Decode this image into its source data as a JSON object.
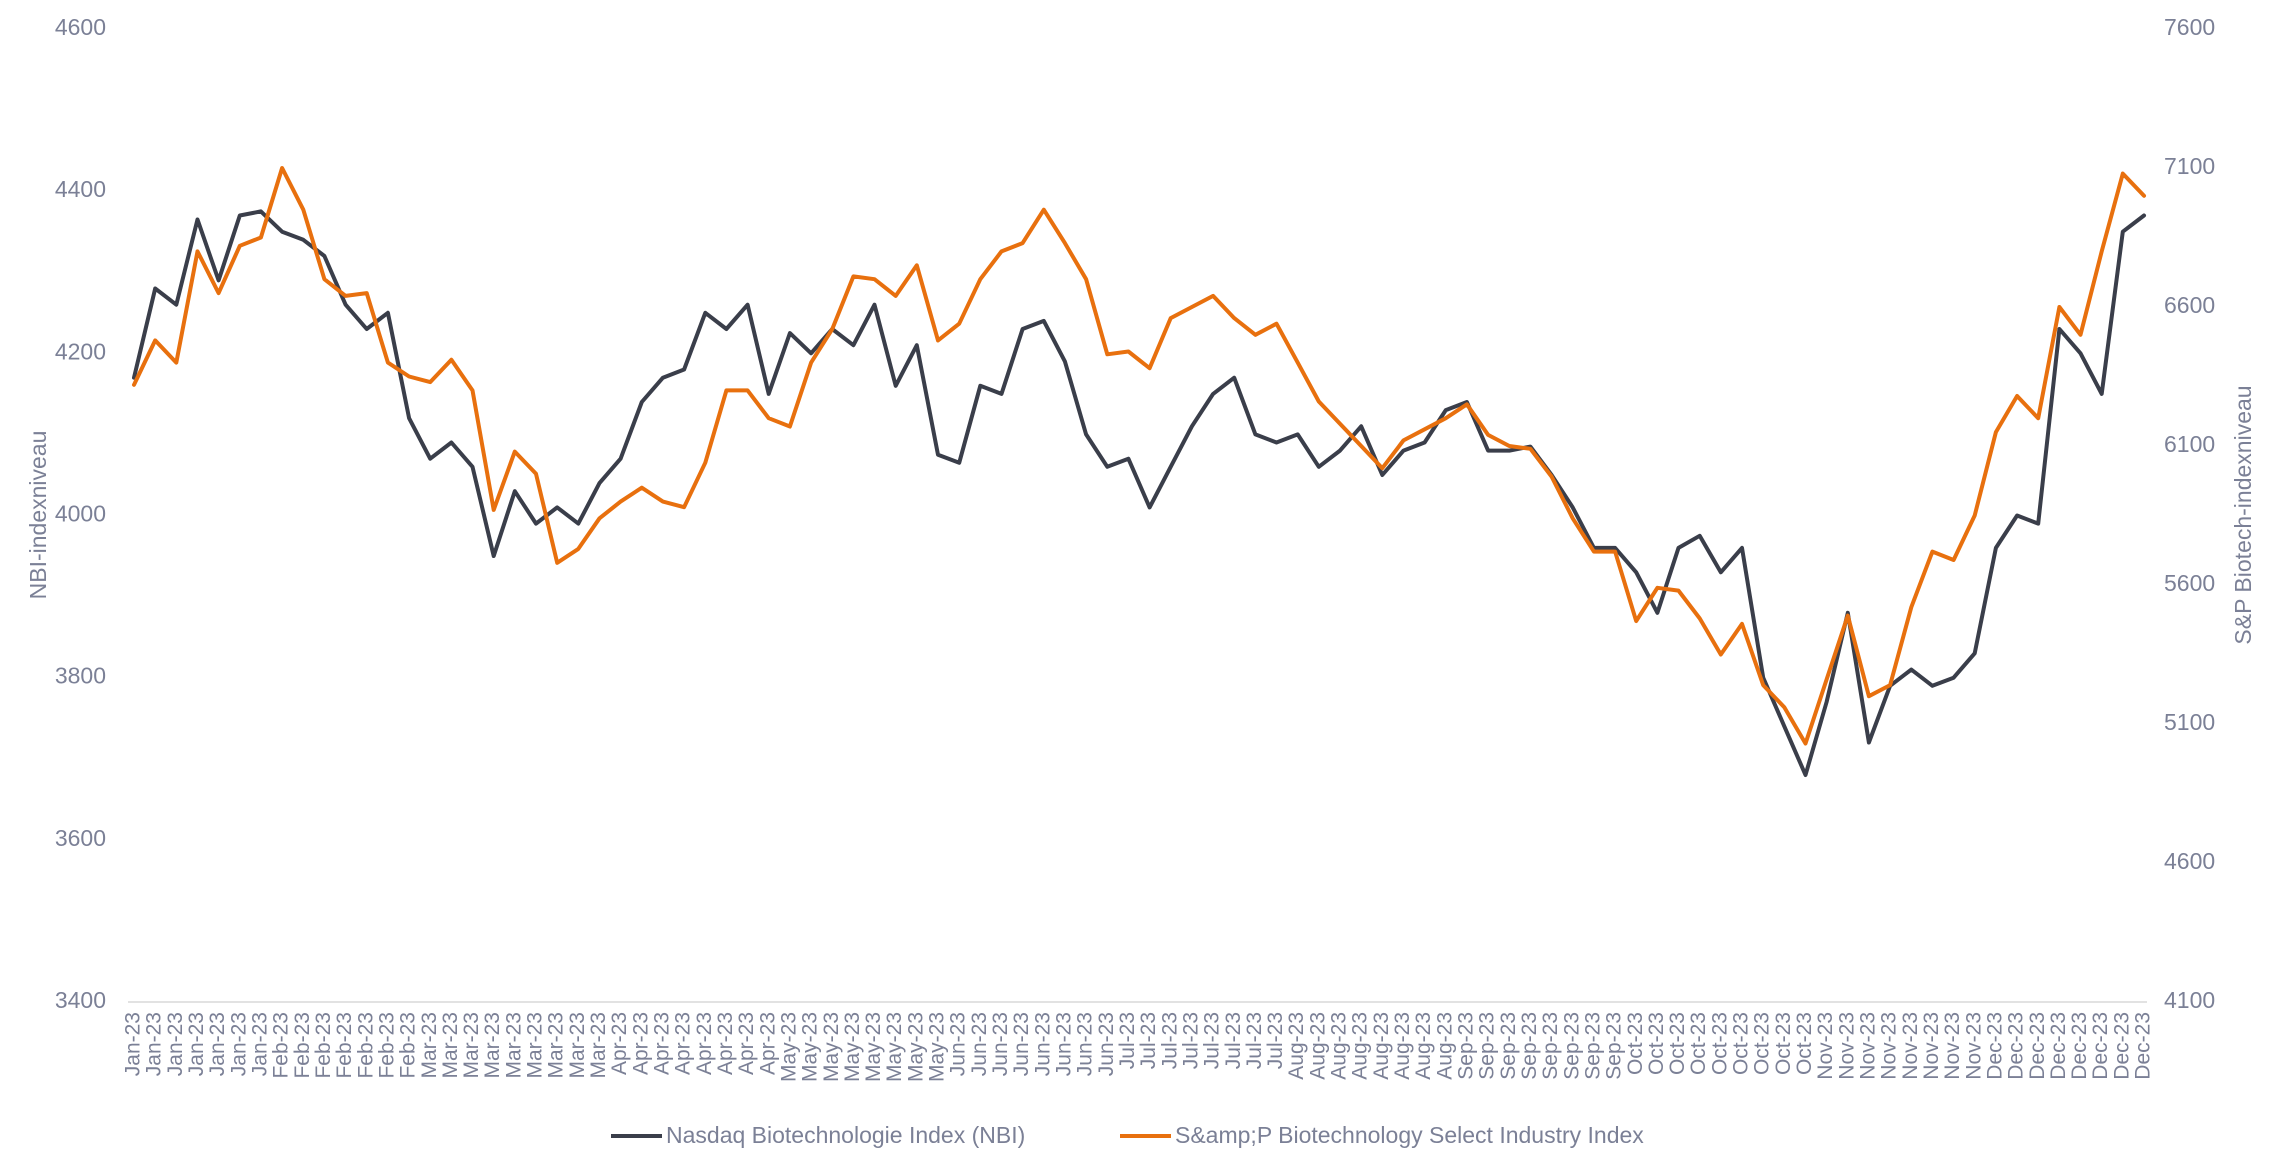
{
  "chart_data": {
    "type": "line",
    "y_label": "NBI-indexniveau",
    "y2_label": "S&P Biotech-indexniveau",
    "categories": [
      "Jan-23",
      "Jan-23",
      "Jan-23",
      "Jan-23",
      "Jan-23",
      "Jan-23",
      "Jan-23",
      "Feb-23",
      "Feb-23",
      "Feb-23",
      "Feb-23",
      "Feb-23",
      "Feb-23",
      "Feb-23",
      "Mar-23",
      "Mar-23",
      "Mar-23",
      "Mar-23",
      "Mar-23",
      "Mar-23",
      "Mar-23",
      "Mar-23",
      "Mar-23",
      "Apr-23",
      "Apr-23",
      "Apr-23",
      "Apr-23",
      "Apr-23",
      "Apr-23",
      "Apr-23",
      "Apr-23",
      "May-23",
      "May-23",
      "May-23",
      "May-23",
      "May-23",
      "May-23",
      "May-23",
      "May-23",
      "Jun-23",
      "Jun-23",
      "Jun-23",
      "Jun-23",
      "Jun-23",
      "Jun-23",
      "Jun-23",
      "Jun-23",
      "Jul-23",
      "Jul-23",
      "Jul-23",
      "Jul-23",
      "Jul-23",
      "Jul-23",
      "Jul-23",
      "Jul-23",
      "Aug-23",
      "Aug-23",
      "Aug-23",
      "Aug-23",
      "Aug-23",
      "Aug-23",
      "Aug-23",
      "Aug-23",
      "Sep-23",
      "Sep-23",
      "Sep-23",
      "Sep-23",
      "Sep-23",
      "Sep-23",
      "Sep-23",
      "Sep-23",
      "Oct-23",
      "Oct-23",
      "Oct-23",
      "Oct-23",
      "Oct-23",
      "Oct-23",
      "Oct-23",
      "Oct-23",
      "Oct-23",
      "Nov-23",
      "Nov-23",
      "Nov-23",
      "Nov-23",
      "Nov-23",
      "Nov-23",
      "Nov-23",
      "Nov-23",
      "Dec-23",
      "Dec-23",
      "Dec-23",
      "Dec-23",
      "Dec-23",
      "Dec-23",
      "Dec-23",
      "Dec-23"
    ],
    "series": [
      {
        "name": "Nasdaq Biotechnologie Index (NBI)",
        "color": "#3a3e4a",
        "values": [
          4170,
          4280,
          4260,
          4365,
          4290,
          4370,
          4375,
          4350,
          4340,
          4320,
          4260,
          4230,
          4250,
          4120,
          4070,
          4090,
          4060,
          3950,
          4030,
          3990,
          4010,
          3990,
          4040,
          4070,
          4140,
          4170,
          4180,
          4250,
          4230,
          4260,
          4150,
          4225,
          4200,
          4230,
          4210,
          4260,
          4160,
          4210,
          4075,
          4065,
          4160,
          4150,
          4230,
          4240,
          4190,
          4100,
          4060,
          4070,
          4010,
          4060,
          4110,
          4150,
          4170,
          4100,
          4090,
          4100,
          4060,
          4080,
          4110,
          4050,
          4080,
          4090,
          4130,
          4140,
          4080,
          4080,
          4085,
          4050,
          4010,
          3960,
          3960,
          3930,
          3880,
          3960,
          3975,
          3930,
          3960,
          3800,
          3740,
          3680,
          3770,
          3880,
          3720,
          3790,
          3810,
          3790,
          3800,
          3830,
          3960,
          4000,
          3990,
          4230,
          4200,
          4150,
          4350,
          4370
        ]
      },
      {
        "name": "S&amp;P Biotechnology Select Industry Index",
        "color": "#e8700e",
        "axis": "y2",
        "values": [
          6320,
          6480,
          6400,
          6800,
          6650,
          6820,
          6850,
          7100,
          6950,
          6700,
          6640,
          6650,
          6400,
          6350,
          6330,
          6410,
          6300,
          5870,
          6080,
          6000,
          5680,
          5730,
          5840,
          5900,
          5950,
          5900,
          5880,
          6040,
          6300,
          6300,
          6200,
          6170,
          6400,
          6520,
          6710,
          6700,
          6640,
          6750,
          6480,
          6540,
          6700,
          6800,
          6830,
          6950,
          6830,
          6700,
          6430,
          6440,
          6380,
          6560,
          6600,
          6640,
          6560,
          6500,
          6540,
          6400,
          6260,
          6180,
          6100,
          6020,
          6120,
          6160,
          6200,
          6250,
          6140,
          6100,
          6090,
          5990,
          5840,
          5720,
          5720,
          5470,
          5590,
          5580,
          5480,
          5350,
          5460,
          5240,
          5160,
          5030,
          5260,
          5490,
          5200,
          5240,
          5520,
          5720,
          5690,
          5850,
          6150,
          6280,
          6200,
          6600,
          6500,
          6800,
          7080,
          7000
        ]
      }
    ],
    "ylim": [
      3400,
      4600
    ],
    "yticks": [
      3400,
      3600,
      3800,
      4000,
      4200,
      4400,
      4600
    ],
    "y2lim": [
      4100,
      7600
    ],
    "y2ticks": [
      4100,
      4600,
      5100,
      5600,
      6100,
      6600,
      7100,
      7600
    ],
    "grid": false,
    "legend": "bottom"
  }
}
